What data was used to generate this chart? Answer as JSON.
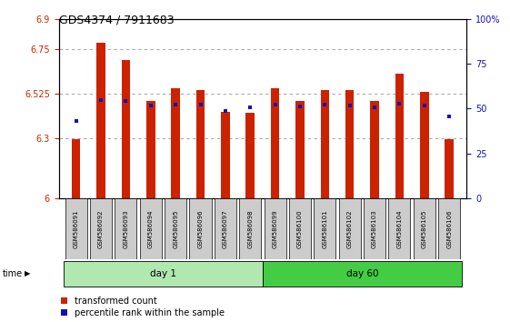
{
  "title": "GDS4374 / 7911683",
  "samples": [
    "GSM586091",
    "GSM586092",
    "GSM586093",
    "GSM586094",
    "GSM586095",
    "GSM586096",
    "GSM586097",
    "GSM586098",
    "GSM586099",
    "GSM586100",
    "GSM586101",
    "GSM586102",
    "GSM586103",
    "GSM586104",
    "GSM586105",
    "GSM586106"
  ],
  "red_values": [
    6.295,
    6.78,
    6.695,
    6.49,
    6.555,
    6.545,
    6.435,
    6.43,
    6.555,
    6.49,
    6.545,
    6.545,
    6.49,
    6.625,
    6.535,
    6.295
  ],
  "blue_y_values": [
    6.39,
    6.495,
    6.49,
    6.465,
    6.47,
    6.47,
    6.44,
    6.455,
    6.47,
    6.46,
    6.47,
    6.465,
    6.455,
    6.475,
    6.465,
    6.41
  ],
  "ylim_left": [
    6.0,
    6.9
  ],
  "ylim_right": [
    0,
    100
  ],
  "yticks_left": [
    6.0,
    6.3,
    6.525,
    6.75,
    6.9
  ],
  "yticks_right": [
    0,
    25,
    50,
    75,
    100
  ],
  "ytick_labels_left": [
    "6",
    "6.3",
    "6.525",
    "6.75",
    "6.9"
  ],
  "ytick_labels_right": [
    "0",
    "25",
    "50",
    "75",
    "100%"
  ],
  "day1_label": "day 1",
  "day60_label": "day 60",
  "bar_color": "#cc2200",
  "blue_color": "#1111bb",
  "grid_color": "#888888",
  "legend_red": "transformed count",
  "legend_blue": "percentile rank within the sample",
  "bar_width": 0.35,
  "base": 6.0,
  "day1_green": "#b0e8b0",
  "day60_green": "#44cc44"
}
